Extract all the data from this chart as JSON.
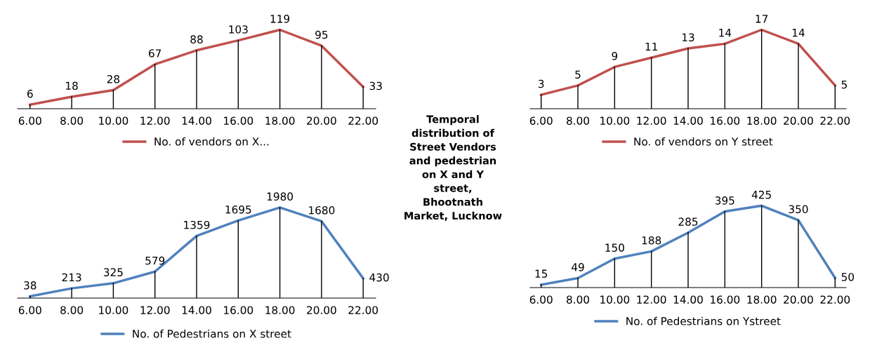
{
  "chart_data": [
    {
      "type": "line",
      "categories": [
        "6.00",
        "8.00",
        "10.00",
        "12.00",
        "14.00",
        "16.00",
        "18.00",
        "20.00",
        "22.00"
      ],
      "series": [
        {
          "name": "No. of vendors on X...",
          "color": "#c0504d",
          "values": [
            6,
            18,
            28,
            67,
            88,
            103,
            119,
            95,
            33
          ]
        }
      ],
      "data_labels": true,
      "grid": "x",
      "legend": "bottom",
      "tick_labels": "x",
      "marker": "none",
      "line_style": "solid"
    },
    {
      "type": "line",
      "categories": [
        "6.00",
        "8.00",
        "10.00",
        "12.00",
        "14.00",
        "16.00",
        "18.00",
        "20.00",
        "22.00"
      ],
      "series": [
        {
          "name": "No. of vendors on Y street",
          "color": "#c0504d",
          "values": [
            3,
            5,
            9,
            11,
            13,
            14,
            17,
            14,
            5
          ]
        }
      ],
      "data_labels": true,
      "grid": "x",
      "legend": "bottom",
      "tick_labels": "x",
      "marker": "none",
      "line_style": "solid"
    },
    {
      "type": "other",
      "title": "Temporal distribution of Street Vendors and pedestrian on X and Y street, Bhootnath Market, Lucknow"
    },
    {
      "type": "line",
      "categories": [
        "6.00",
        "8.00",
        "10.00",
        "12.00",
        "14.00",
        "16.00",
        "18.00",
        "20.00",
        "22.00"
      ],
      "series": [
        {
          "name": "No. of Pedestrians on X street",
          "color": "#4f81bd",
          "values": [
            38,
            213,
            325,
            579,
            1359,
            1695,
            1980,
            1680,
            430
          ]
        }
      ],
      "data_labels": true,
      "grid": "x",
      "legend": "bottom",
      "tick_labels": "x",
      "marker": "none",
      "line_style": "solid"
    },
    {
      "type": "line",
      "categories": [
        "6.00",
        "8.00",
        "10.00",
        "12.00",
        "14.00",
        "16.00",
        "18.00",
        "20.00",
        "22.00"
      ],
      "series": [
        {
          "name": "No. of Pedestrians on Ystreet",
          "color": "#4f81bd",
          "values": [
            15,
            49,
            150,
            188,
            285,
            395,
            425,
            350,
            50
          ]
        }
      ],
      "data_labels": true,
      "grid": "x",
      "legend": "bottom",
      "tick_labels": "x",
      "marker": "none",
      "line_style": "solid"
    }
  ]
}
